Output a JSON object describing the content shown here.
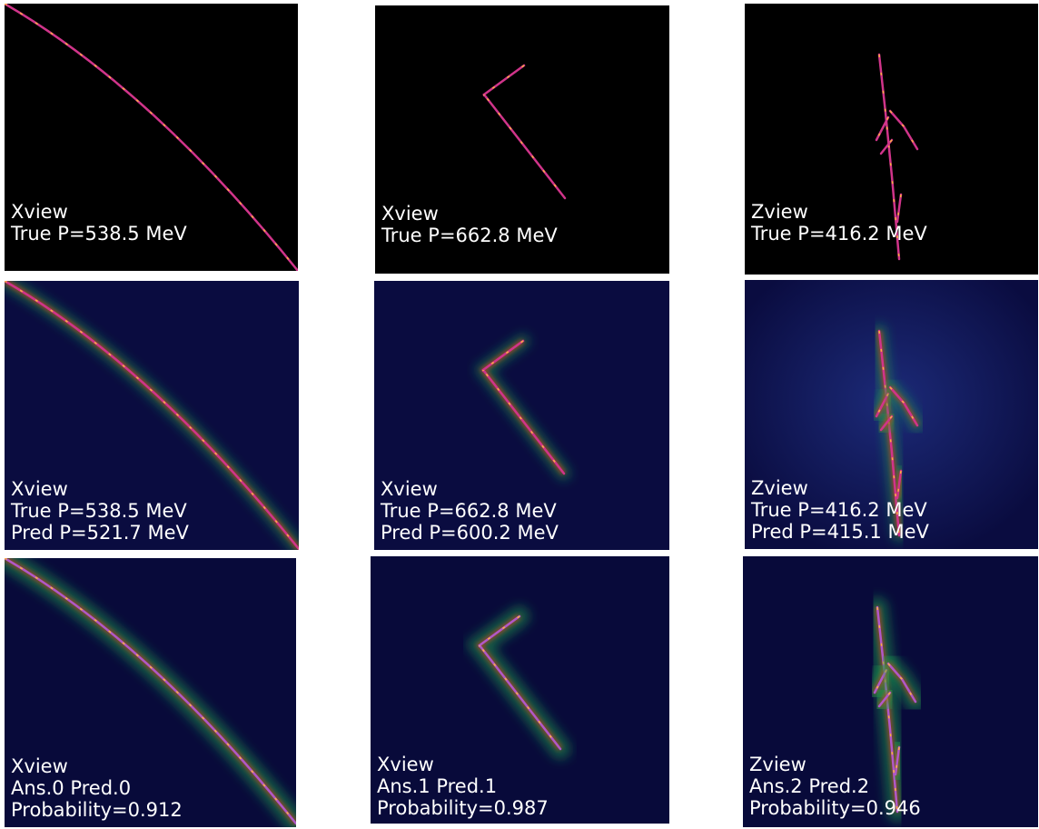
{
  "rows": [
    [
      {
        "lines": [
          "Xview",
          "True P=538.5 MeV"
        ]
      },
      {
        "lines": [
          "Xview",
          "True P=662.8 MeV"
        ]
      },
      {
        "lines": [
          "Zview",
          "True P=416.2 MeV"
        ]
      }
    ],
    [
      {
        "lines": [
          "Xview",
          "True P=538.5 MeV",
          "Pred P=521.7 MeV"
        ]
      },
      {
        "lines": [
          "Xview",
          "True P=662.8 MeV",
          "Pred P=600.2 MeV"
        ]
      },
      {
        "lines": [
          "Zview",
          "True P=416.2 MeV",
          "Pred P=415.1 MeV"
        ]
      }
    ],
    [
      {
        "lines": [
          "Xview",
          "Ans.0 Pred.0",
          "Probability=0.912"
        ]
      },
      {
        "lines": [
          "Xview",
          "Ans.1 Pred.1",
          "Probability=0.987"
        ]
      },
      {
        "lines": [
          "Zview",
          "Ans.2 Pred.2",
          "Probability=0.946"
        ]
      }
    ]
  ]
}
